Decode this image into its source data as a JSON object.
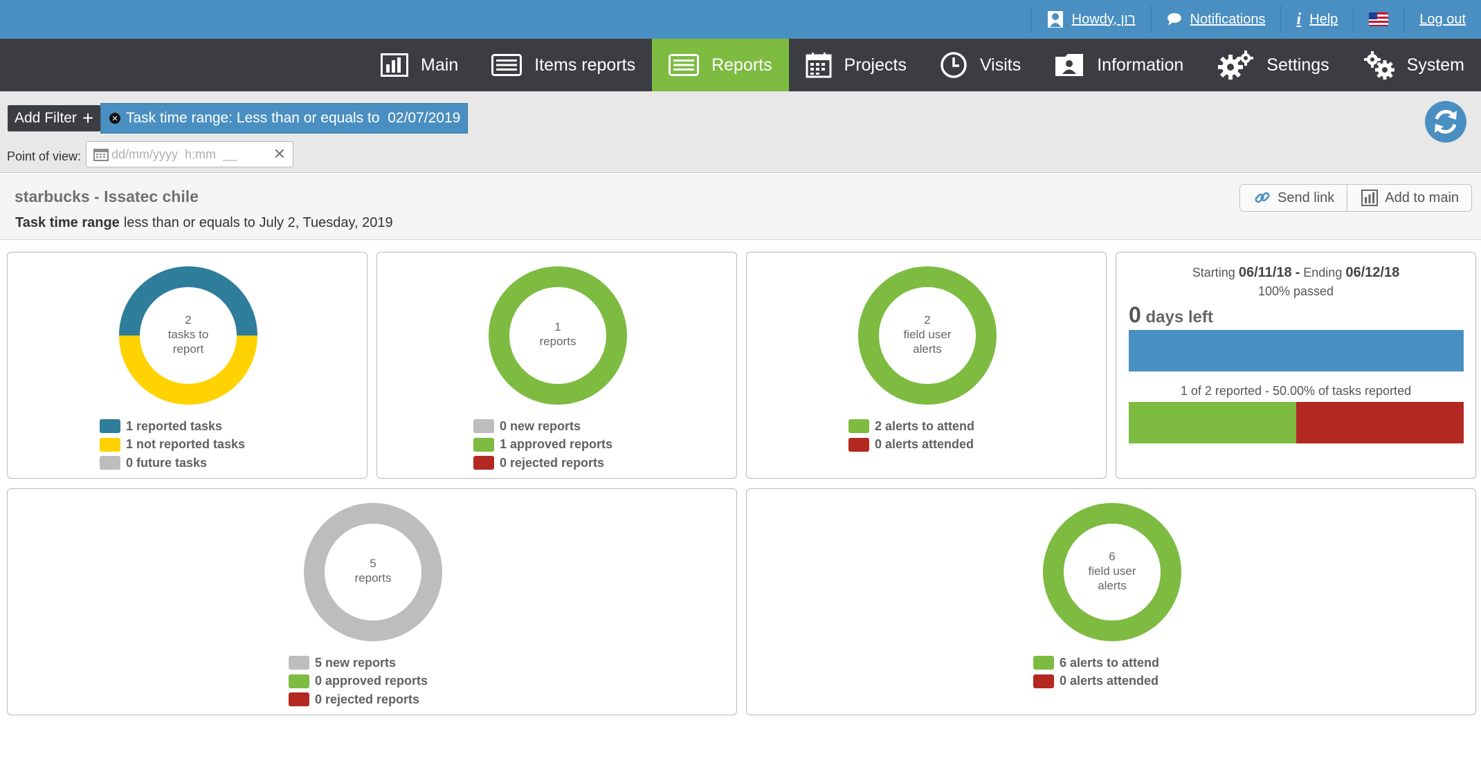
{
  "topbar": {
    "howdy": "Howdy, רון",
    "notifications": "Notifications",
    "help": "Help",
    "logout": "Log out"
  },
  "nav": [
    {
      "label": "Main",
      "icon": "bar-chart-icon"
    },
    {
      "label": "Items reports",
      "icon": "list-icon"
    },
    {
      "label": "Reports",
      "icon": "list-icon",
      "active": true
    },
    {
      "label": "Projects",
      "icon": "calendar-icon"
    },
    {
      "label": "Visits",
      "icon": "clock-icon"
    },
    {
      "label": "Information",
      "icon": "user-folder-icon"
    },
    {
      "label": "Settings",
      "icon": "gears-icon"
    },
    {
      "label": "System",
      "icon": "gears-icon"
    }
  ],
  "filter": {
    "add_label": "Add Filter",
    "chip_label": "Task time range: Less than or equals to  02/07/2019",
    "pov_label": "Point of view:",
    "pov_placeholder": "dd/mm/yyyy  h:mm  __"
  },
  "report": {
    "title": "starbucks - Issatec chile",
    "range_label": "Task time range",
    "range_value": "less than or equals to July 2, Tuesday, 2019",
    "send_link": "Send link",
    "add_to_main": "Add to main"
  },
  "colors": {
    "blue": "#2e7d9a",
    "yellow": "#ffd200",
    "gray": "#bdbdbd",
    "green": "#7dbb41",
    "red": "#b32821",
    "accent": "#4a8fc1"
  },
  "cards": {
    "tasks": {
      "center": [
        "2",
        "tasks to",
        "report"
      ],
      "legend": [
        "1 reported tasks",
        "1 not reported tasks",
        "0 future tasks"
      ],
      "values": [
        1,
        1,
        0
      ]
    },
    "reports": {
      "center": [
        "1",
        "reports"
      ],
      "legend": [
        "0 new reports",
        "1 approved reports",
        "0 rejected reports"
      ],
      "values": [
        0,
        1,
        0
      ]
    },
    "alerts": {
      "center": [
        "2",
        "field user",
        "alerts"
      ],
      "legend": [
        "2 alerts to attend",
        "0 alerts attended"
      ],
      "values": [
        2,
        0
      ]
    },
    "progress": {
      "starting_label": "Starting",
      "start": "06/11/18",
      "ending_label": "Ending",
      "end": "06/12/18",
      "passed": "100% passed",
      "days_left_num": "0",
      "days_left_label": "days left",
      "time_passed_fraction": 1.0,
      "reported_text": "1 of 2 reported - 50.00% of tasks reported",
      "reported_fraction": 0.5
    },
    "reports_all": {
      "center": [
        "5",
        "reports"
      ],
      "legend": [
        "5 new reports",
        "0 approved reports",
        "0 rejected reports"
      ],
      "values": [
        5,
        0,
        0
      ]
    },
    "alerts_all": {
      "center": [
        "6",
        "field user",
        "alerts"
      ],
      "legend": [
        "6 alerts to attend",
        "0 alerts attended"
      ],
      "values": [
        6,
        0
      ]
    }
  }
}
